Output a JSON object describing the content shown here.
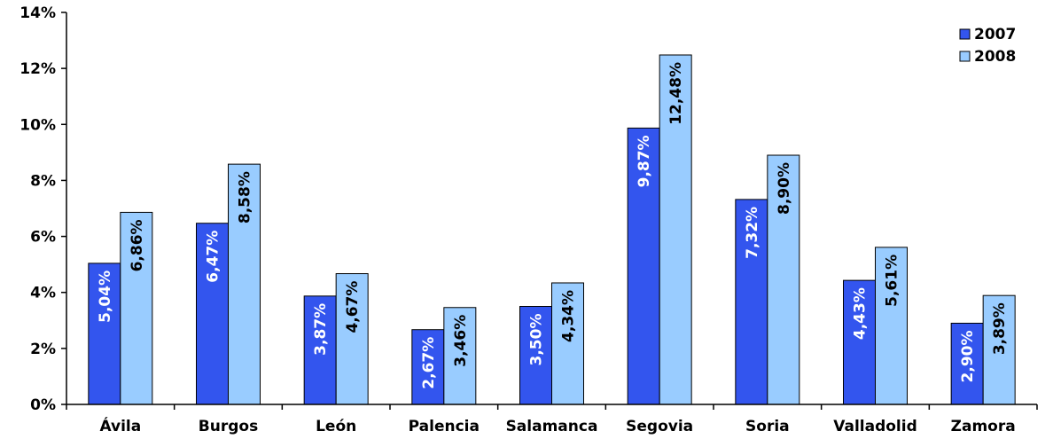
{
  "chart_data": {
    "type": "bar",
    "categories": [
      "Ávila",
      "Burgos",
      "León",
      "Palencia",
      "Salamanca",
      "Segovia",
      "Soria",
      "Valladolid",
      "Zamora"
    ],
    "series": [
      {
        "name": "2007",
        "color": "#3355ee",
        "label_color": "#ffffff",
        "values": [
          5.04,
          6.47,
          3.87,
          2.67,
          3.5,
          9.87,
          7.32,
          4.43,
          2.9
        ],
        "labels": [
          "5,04%",
          "6,47%",
          "3,87%",
          "2,67%",
          "3,50%",
          "9,87%",
          "7,32%",
          "4,43%",
          "2,90%"
        ]
      },
      {
        "name": "2008",
        "color": "#99ccff",
        "label_color": "#000000",
        "values": [
          6.86,
          8.58,
          4.67,
          3.46,
          4.34,
          12.48,
          8.9,
          5.61,
          3.89
        ],
        "labels": [
          "6,86%",
          "8,58%",
          "4,67%",
          "3,46%",
          "4,34%",
          "12,48%",
          "8,90%",
          "5,61%",
          "3,89%"
        ]
      }
    ],
    "ylim": [
      0,
      14
    ],
    "yticks": [
      {
        "value": 0,
        "label": "0%"
      },
      {
        "value": 2,
        "label": "2%"
      },
      {
        "value": 4,
        "label": "4%"
      },
      {
        "value": 6,
        "label": "6%"
      },
      {
        "value": 8,
        "label": "8%"
      },
      {
        "value": 10,
        "label": "10%"
      },
      {
        "value": 12,
        "label": "12%"
      },
      {
        "value": 14,
        "label": "14%"
      }
    ],
    "grid": false,
    "legend_position": "top-right"
  }
}
